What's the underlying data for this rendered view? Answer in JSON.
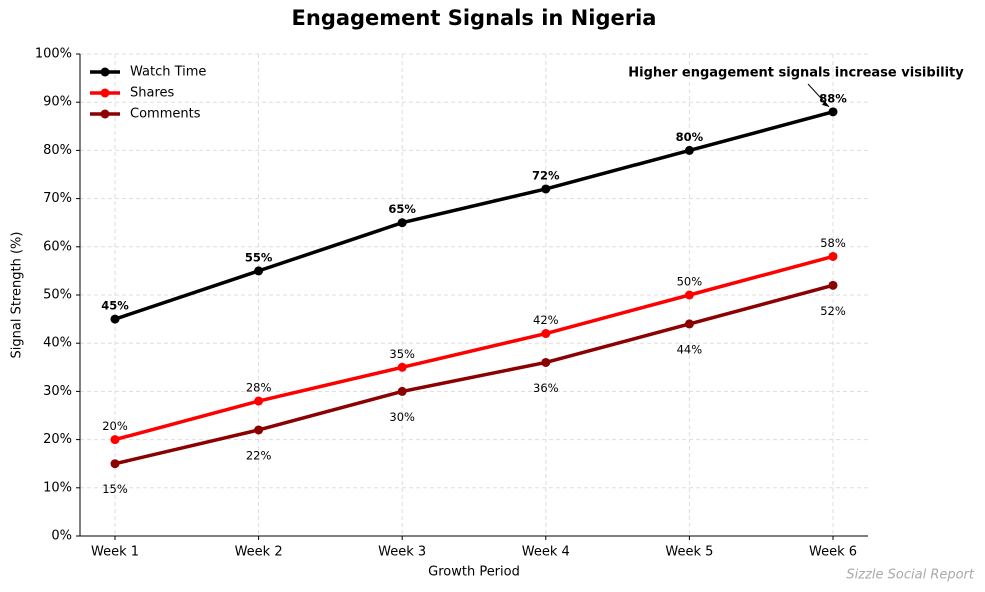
{
  "chart_data": {
    "type": "line",
    "title": "Engagement Signals in Nigeria",
    "xlabel": "Growth Period",
    "ylabel": "Signal Strength (%)",
    "categories": [
      "Week 1",
      "Week 2",
      "Week 3",
      "Week 4",
      "Week 5",
      "Week 6"
    ],
    "series": [
      {
        "name": "Watch Time",
        "color": "#000000",
        "values": [
          45,
          55,
          65,
          72,
          80,
          88
        ],
        "value_labels": [
          "45%",
          "55%",
          "65%",
          "72%",
          "80%",
          "88%"
        ]
      },
      {
        "name": "Shares",
        "color": "#ff0000",
        "values": [
          20,
          28,
          35,
          42,
          50,
          58
        ],
        "value_labels": [
          "20%",
          "28%",
          "35%",
          "42%",
          "50%",
          "58%"
        ]
      },
      {
        "name": "Comments",
        "color": "#8b0000",
        "values": [
          15,
          22,
          30,
          36,
          44,
          52
        ],
        "value_labels": [
          "15%",
          "22%",
          "30%",
          "36%",
          "44%",
          "52%"
        ]
      }
    ],
    "ylim": [
      0,
      100
    ],
    "yticks": [
      {
        "value": 0,
        "label": "0%"
      },
      {
        "value": 10,
        "label": "10%"
      },
      {
        "value": 20,
        "label": "20%"
      },
      {
        "value": 30,
        "label": "30%"
      },
      {
        "value": 40,
        "label": "40%"
      },
      {
        "value": 50,
        "label": "50%"
      },
      {
        "value": 60,
        "label": "60%"
      },
      {
        "value": 70,
        "label": "70%"
      },
      {
        "value": 80,
        "label": "80%"
      },
      {
        "value": 90,
        "label": "90%"
      },
      {
        "value": 100,
        "label": "100%"
      }
    ],
    "grid": true,
    "legend": "upper left",
    "annotation": "Higher engagement signals increase visibility",
    "footer": "Sizzle Social Report"
  }
}
